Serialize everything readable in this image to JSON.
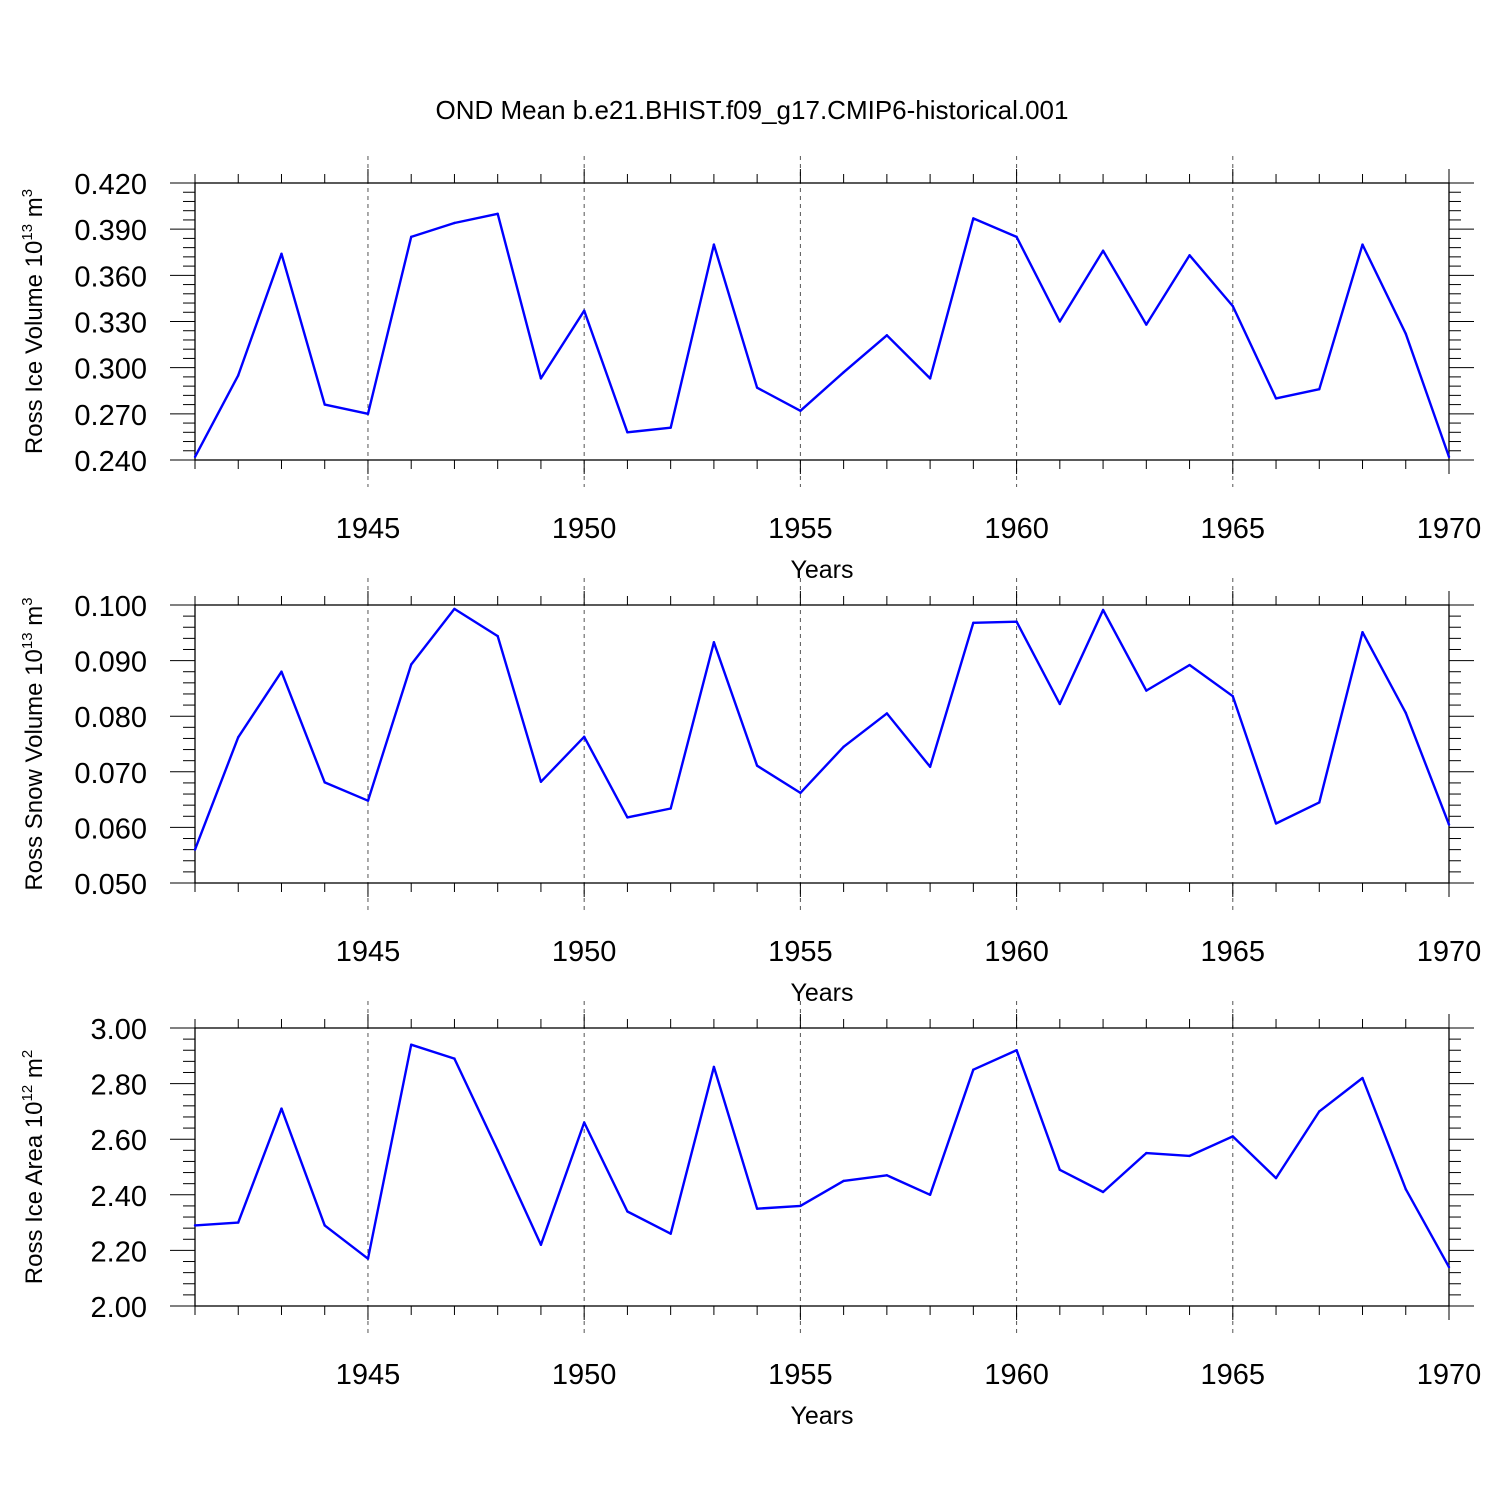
{
  "title": "OND Mean b.e21.BHIST.f09_g17.CMIP6-historical.001",
  "line_color": "#0000ff",
  "chart_data": [
    {
      "type": "line",
      "id": "ice-volume",
      "title": "",
      "ylabel": {
        "prefix": "Ross Ice Volume 10",
        "exp": "13",
        "unit": " m",
        "unit_exp": "3"
      },
      "xlabel": "Years",
      "xlim": [
        1941,
        1970
      ],
      "ylim": [
        0.24,
        0.42
      ],
      "yticks": [
        0.24,
        0.27,
        0.3,
        0.33,
        0.36,
        0.39,
        0.42
      ],
      "ytick_labels": [
        "0.240",
        "0.270",
        "0.300",
        "0.330",
        "0.360",
        "0.390",
        "0.420"
      ],
      "xticks": [
        1945,
        1950,
        1955,
        1960,
        1965,
        1970
      ],
      "xtick_labels": [
        "1945",
        "1950",
        "1955",
        "1960",
        "1965",
        "1970"
      ],
      "grid_x": [
        1945,
        1950,
        1955,
        1960,
        1965
      ],
      "x": [
        1941,
        1942,
        1943,
        1944,
        1945,
        1946,
        1947,
        1948,
        1949,
        1950,
        1951,
        1952,
        1953,
        1954,
        1955,
        1956,
        1957,
        1958,
        1959,
        1960,
        1961,
        1962,
        1963,
        1964,
        1965,
        1966,
        1967,
        1968,
        1969,
        1970
      ],
      "values": [
        0.242,
        0.295,
        0.374,
        0.276,
        0.27,
        0.385,
        0.394,
        0.4,
        0.293,
        0.337,
        0.258,
        0.261,
        0.38,
        0.287,
        0.272,
        0.297,
        0.321,
        0.293,
        0.397,
        0.385,
        0.33,
        0.376,
        0.328,
        0.373,
        0.34,
        0.28,
        0.286,
        0.38,
        0.322,
        0.242
      ]
    },
    {
      "type": "line",
      "id": "snow-volume",
      "title": "",
      "ylabel": {
        "prefix": "Ross Snow Volume 10",
        "exp": "13",
        "unit": " m",
        "unit_exp": "3"
      },
      "xlabel": "Years",
      "xlim": [
        1941,
        1970
      ],
      "ylim": [
        0.05,
        0.1
      ],
      "yticks": [
        0.05,
        0.06,
        0.07,
        0.08,
        0.09,
        0.1
      ],
      "ytick_labels": [
        "0.050",
        "0.060",
        "0.070",
        "0.080",
        "0.090",
        "0.100"
      ],
      "xticks": [
        1945,
        1950,
        1955,
        1960,
        1965,
        1970
      ],
      "xtick_labels": [
        "1945",
        "1950",
        "1955",
        "1960",
        "1965",
        "1970"
      ],
      "grid_x": [
        1945,
        1950,
        1955,
        1960,
        1965
      ],
      "x": [
        1941,
        1942,
        1943,
        1944,
        1945,
        1946,
        1947,
        1948,
        1949,
        1950,
        1951,
        1952,
        1953,
        1954,
        1955,
        1956,
        1957,
        1958,
        1959,
        1960,
        1961,
        1962,
        1963,
        1964,
        1965,
        1966,
        1967,
        1968,
        1969,
        1970
      ],
      "values": [
        0.056,
        0.0762,
        0.088,
        0.0681,
        0.0648,
        0.0893,
        0.0993,
        0.0944,
        0.0682,
        0.0763,
        0.0618,
        0.0634,
        0.0933,
        0.0711,
        0.0662,
        0.0745,
        0.0805,
        0.0709,
        0.0968,
        0.097,
        0.0822,
        0.0991,
        0.0846,
        0.0892,
        0.0836,
        0.0607,
        0.0645,
        0.0951,
        0.0806,
        0.0605
      ]
    },
    {
      "type": "line",
      "id": "ice-area",
      "title": "",
      "ylabel": {
        "prefix": "Ross Ice Area 10",
        "exp": "12",
        "unit": " m",
        "unit_exp": "2"
      },
      "xlabel": "Years",
      "xlim": [
        1941,
        1970
      ],
      "ylim": [
        2.0,
        3.0
      ],
      "yticks": [
        2.0,
        2.2,
        2.4,
        2.6,
        2.8,
        3.0
      ],
      "ytick_labels": [
        "2.00",
        "2.20",
        "2.40",
        "2.60",
        "2.80",
        "3.00"
      ],
      "xticks": [
        1945,
        1950,
        1955,
        1960,
        1965,
        1970
      ],
      "xtick_labels": [
        "1945",
        "1950",
        "1955",
        "1960",
        "1965",
        "1970"
      ],
      "grid_x": [
        1945,
        1950,
        1955,
        1960,
        1965
      ],
      "x": [
        1941,
        1942,
        1943,
        1944,
        1945,
        1946,
        1947,
        1948,
        1949,
        1950,
        1951,
        1952,
        1953,
        1954,
        1955,
        1956,
        1957,
        1958,
        1959,
        1960,
        1961,
        1962,
        1963,
        1964,
        1965,
        1966,
        1967,
        1968,
        1969,
        1970
      ],
      "values": [
        2.29,
        2.3,
        2.71,
        2.29,
        2.17,
        2.94,
        2.89,
        2.56,
        2.22,
        2.66,
        2.34,
        2.26,
        2.86,
        2.35,
        2.36,
        2.45,
        2.47,
        2.4,
        2.85,
        2.92,
        2.49,
        2.41,
        2.55,
        2.54,
        2.61,
        2.46,
        2.7,
        2.82,
        2.42,
        2.14
      ]
    }
  ]
}
